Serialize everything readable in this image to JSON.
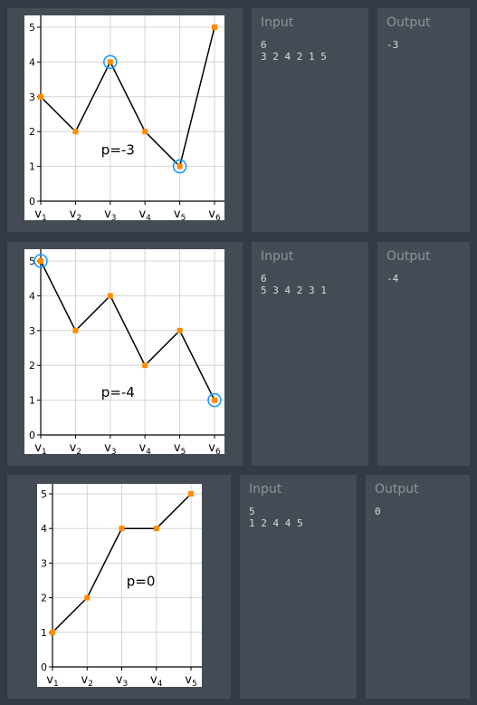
{
  "examples": [
    {
      "input_label": "Input",
      "input_lines": [
        "6",
        "3 2 4 2 1 5"
      ],
      "output_label": "Output",
      "output_value": "-3",
      "plot": {
        "values": [
          3,
          2,
          4,
          2,
          1,
          5
        ],
        "highlighted": [
          3,
          5
        ],
        "annotation": "p=-3",
        "annotation_pos": [
          3.0,
          1.5
        ],
        "y_ticks": [
          "0",
          "1",
          "2",
          "3",
          "4",
          "5"
        ],
        "x_labels": [
          "v1",
          "v2",
          "v3",
          "v4",
          "v5",
          "v6"
        ]
      }
    },
    {
      "input_label": "Input",
      "input_lines": [
        "6",
        "5 3 4 2 3 1"
      ],
      "output_label": "Output",
      "output_value": "-4",
      "plot": {
        "values": [
          5,
          3,
          4,
          2,
          3,
          1
        ],
        "highlighted": [
          1,
          6
        ],
        "annotation": "p=-4",
        "annotation_pos": [
          3.0,
          1.25
        ],
        "y_ticks": [
          "0",
          "1",
          "2",
          "3",
          "4",
          "5"
        ],
        "x_labels": [
          "v1",
          "v2",
          "v3",
          "v4",
          "v5",
          "v6"
        ]
      }
    },
    {
      "input_label": "Input",
      "input_lines": [
        "5",
        "1 2 4 4 5"
      ],
      "output_label": "Output",
      "output_value": "0",
      "plot": {
        "values": [
          1,
          2,
          4,
          4,
          5
        ],
        "highlighted": [],
        "annotation": "p=0",
        "annotation_pos": [
          3.4,
          2.5
        ],
        "y_ticks": [
          "0",
          "1",
          "2",
          "3",
          "4",
          "5"
        ],
        "x_labels": [
          "v1",
          "v2",
          "v3",
          "v4",
          "v5"
        ]
      }
    }
  ],
  "colors": {
    "point": "#ff8c00",
    "highlight_ring": "#1e9bff",
    "line": "#000000",
    "grid": "#d4d4d4"
  }
}
